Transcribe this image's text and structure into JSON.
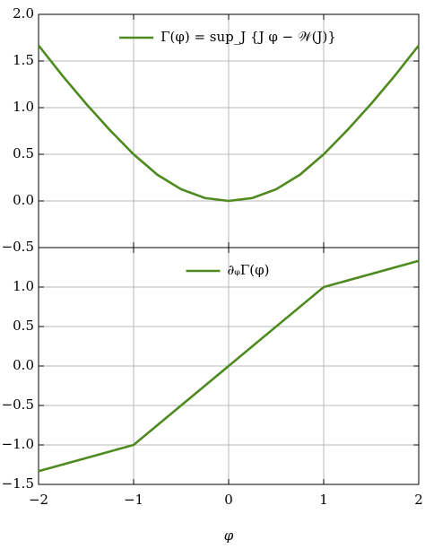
{
  "chart_data": [
    {
      "type": "line",
      "x": [
        -2,
        -1.75,
        -1.5,
        -1.25,
        -1,
        -0.75,
        -0.5,
        -0.25,
        0,
        0.25,
        0.5,
        0.75,
        1,
        1.25,
        1.5,
        1.75,
        2
      ],
      "series": [
        {
          "name": "Γ(φ) = sup_J {J φ − 𝒲(J)}",
          "color": "#4f8a1f",
          "values": [
            1.667,
            1.344,
            1.042,
            0.76,
            0.5,
            0.281,
            0.125,
            0.031,
            0,
            0.031,
            0.125,
            0.281,
            0.5,
            0.76,
            1.042,
            1.344,
            1.667
          ]
        }
      ],
      "xlim": [
        -2,
        2
      ],
      "xticks": [
        -2,
        -1,
        0,
        1,
        2
      ],
      "show_xtick_labels": false,
      "ylim": [
        -0.5,
        2.0
      ],
      "yticks": [
        {
          "value": -0.5,
          "label": "−0.5"
        },
        {
          "value": 0,
          "label": "0.0"
        },
        {
          "value": 0.5,
          "label": "0.5"
        },
        {
          "value": 1,
          "label": "1.0"
        },
        {
          "value": 1.5,
          "label": "1.5"
        },
        {
          "value": 2,
          "label": "2.0"
        }
      ],
      "grid": true,
      "legend": "upper center"
    },
    {
      "type": "line",
      "x": [
        -2,
        -1,
        0,
        1,
        2
      ],
      "series": [
        {
          "name": "∂ᵩΓ(φ)",
          "color": "#4f8a1f",
          "values": [
            -1.333,
            -1,
            0,
            1,
            1.333
          ]
        }
      ],
      "xlim": [
        -2,
        2
      ],
      "xticks": [
        {
          "value": -2,
          "label": "−2"
        },
        {
          "value": -1,
          "label": "−1"
        },
        0,
        1,
        2
      ],
      "show_xtick_labels": true,
      "xlabel": "φ",
      "ylim": [
        -1.5,
        1.5
      ],
      "yticks": [
        {
          "value": -1.5,
          "label": "−1.5"
        },
        {
          "value": -1,
          "label": "−1.0"
        },
        {
          "value": -0.5,
          "label": "−0.5"
        },
        {
          "value": 0,
          "label": "0.0"
        },
        {
          "value": 0.5,
          "label": "0.5"
        },
        {
          "value": 1,
          "label": "1.0"
        }
      ],
      "grid": true,
      "legend": "upper center"
    }
  ]
}
